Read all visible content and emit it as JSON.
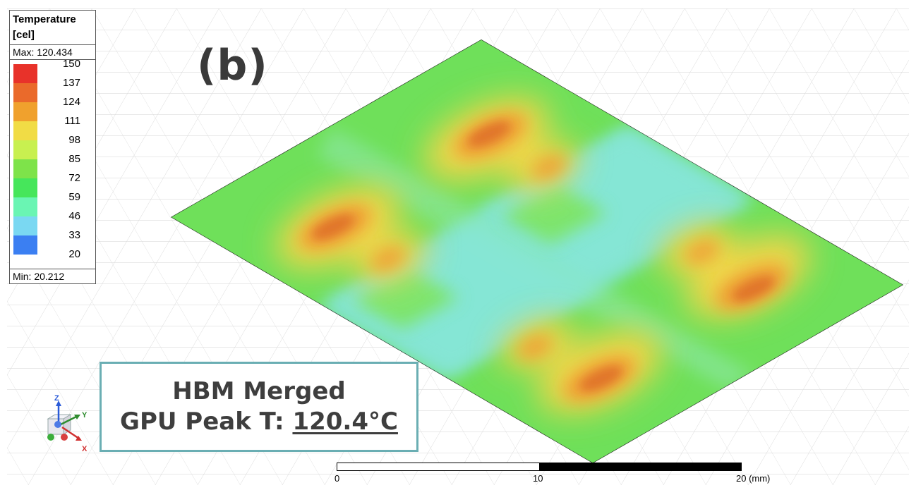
{
  "legend": {
    "title": "Temperature [cel]",
    "max_label": "Max: 120.434",
    "min_label": "Min: 20.212",
    "ticks": [
      "150",
      "137",
      "124",
      "111",
      "98",
      "85",
      "72",
      "59",
      "46",
      "33",
      "20"
    ],
    "colors": [
      "#e8322a",
      "#ea6a2b",
      "#f0a12d",
      "#f1dc45",
      "#c8f050",
      "#7ee34a",
      "#46e65b",
      "#6af5b3",
      "#7ad8f2",
      "#3b7ff2",
      "#2236ee"
    ]
  },
  "panel_label": "(b)",
  "caption": {
    "line1": "HBM Merged",
    "line2_prefix": "GPU Peak T: ",
    "line2_value": "120.4°C"
  },
  "scale_bar": {
    "label_0": "0",
    "label_10": "10",
    "label_20": "20 (mm)"
  },
  "axes": {
    "z": "Z",
    "y": "Y",
    "x": "X"
  },
  "colors": {
    "plate_base": "#6fe05a",
    "cool_cross": "#7fe6d6",
    "hot_core": "#e2782c",
    "hot_ring": "#f3c94a",
    "caption_border": "#6aaeb3"
  }
}
